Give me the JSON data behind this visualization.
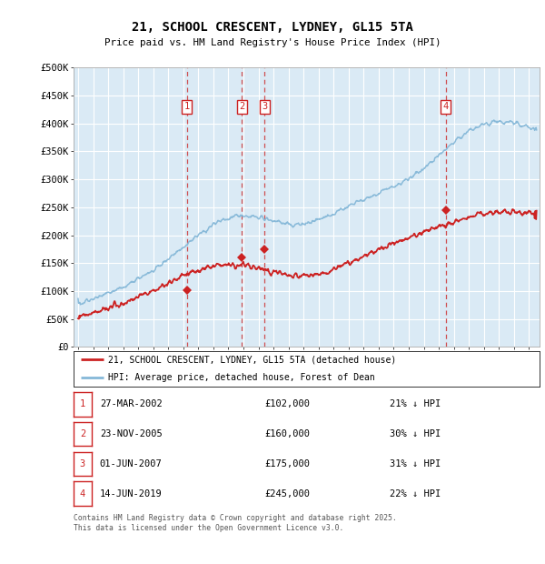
{
  "title": "21, SCHOOL CRESCENT, LYDNEY, GL15 5TA",
  "subtitle": "Price paid vs. HM Land Registry's House Price Index (HPI)",
  "ylim": [
    0,
    500000
  ],
  "xlim_start": 1994.7,
  "xlim_end": 2025.7,
  "bg_color": "#daeaf5",
  "hpi_color": "#85b8d8",
  "price_color": "#cc2222",
  "dash_color": "#cc3333",
  "sale_dates": [
    2002.23,
    2005.9,
    2007.42,
    2019.45
  ],
  "sale_prices": [
    102000,
    160000,
    175000,
    245000
  ],
  "sale_labels": [
    "1",
    "2",
    "3",
    "4"
  ],
  "legend_line1": "21, SCHOOL CRESCENT, LYDNEY, GL15 5TA (detached house)",
  "legend_line2": "HPI: Average price, detached house, Forest of Dean",
  "table_rows": [
    [
      "1",
      "27-MAR-2002",
      "£102,000",
      "21% ↓ HPI"
    ],
    [
      "2",
      "23-NOV-2005",
      "£160,000",
      "30% ↓ HPI"
    ],
    [
      "3",
      "01-JUN-2007",
      "£175,000",
      "31% ↓ HPI"
    ],
    [
      "4",
      "14-JUN-2019",
      "£245,000",
      "22% ↓ HPI"
    ]
  ],
  "footer": "Contains HM Land Registry data © Crown copyright and database right 2025.\nThis data is licensed under the Open Government Licence v3.0."
}
